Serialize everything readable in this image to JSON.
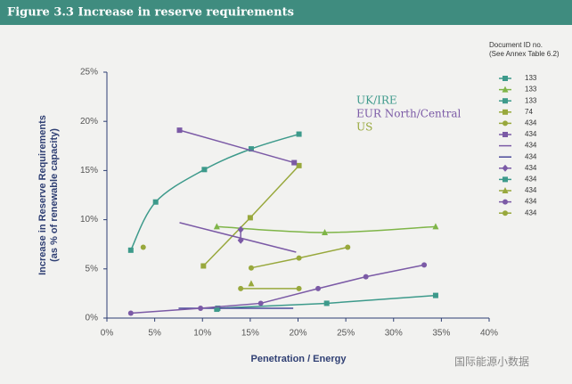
{
  "chart_data": {
    "type": "line",
    "title": "Figure 3.3 Increase in reserve requirements",
    "x_label": "Penetration / Energy",
    "y_label": [
      "Increase in Reserve Requirements",
      "(as % of renewable capacity)"
    ],
    "legend_title": [
      "Document ID no.",
      "(See Annex Table 6.2)"
    ],
    "annotations": [
      {
        "text": "UK/IRE",
        "color": "#3d9a8b"
      },
      {
        "text": "EUR North/Central",
        "color": "#7b5aa6"
      },
      {
        "text": "US",
        "color": "#98a83c"
      }
    ],
    "watermark": "国际能源小数据",
    "xlim": [
      0,
      40
    ],
    "ylim": [
      0,
      25
    ],
    "xticks": [
      {
        "value": 0,
        "label": "0%"
      },
      {
        "value": 5,
        "label": "5%"
      },
      {
        "value": 10,
        "label": "10%"
      },
      {
        "value": 15,
        "label": "15%"
      },
      {
        "value": 20,
        "label": "20%"
      },
      {
        "value": 25,
        "label": "25%"
      },
      {
        "value": 30,
        "label": "30%"
      },
      {
        "value": 35,
        "label": "35%"
      },
      {
        "value": 40,
        "label": "40%"
      }
    ],
    "yticks": [
      {
        "value": 0,
        "label": "0%"
      },
      {
        "value": 5,
        "label": "5%"
      },
      {
        "value": 10,
        "label": "10%"
      },
      {
        "value": 15,
        "label": "15%"
      },
      {
        "value": 20,
        "label": "20%"
      },
      {
        "value": 25,
        "label": "25%"
      }
    ],
    "series": [
      {
        "name": "133",
        "color": "#3d9a8b",
        "marker": "square",
        "smooth": true,
        "x": [
          2.5,
          5.1,
          10.2,
          15.1,
          20.1
        ],
        "values": [
          6.9,
          11.8,
          15.1,
          17.2,
          18.7
        ]
      },
      {
        "name": "133",
        "color": "#7fb548",
        "marker": "triangle",
        "smooth": true,
        "x": [
          11.5,
          22.8,
          34.4
        ],
        "values": [
          9.3,
          8.7,
          9.3
        ]
      },
      {
        "name": "133",
        "color": "#3d9a8b",
        "marker": "square",
        "x": [
          11.6,
          23.0,
          34.4
        ],
        "values": [
          1.0,
          1.5,
          2.3
        ]
      },
      {
        "name": "74",
        "color": "#98a83c",
        "marker": "square",
        "x": [
          10.1,
          15.0,
          20.1
        ],
        "values": [
          5.3,
          10.2,
          15.5
        ]
      },
      {
        "name": "434",
        "color": "#98a83c",
        "marker": "circle",
        "x": [
          3.8,
          null,
          14.0,
          20.1
        ],
        "values": [
          7.2,
          null,
          3.0,
          3.0
        ]
      },
      {
        "name": "434",
        "color": "#7b5aa6",
        "marker": "square",
        "x": [
          7.6,
          19.6
        ],
        "values": [
          19.1,
          15.8
        ]
      },
      {
        "name": "434",
        "color": "#7b5aa6",
        "marker": "none",
        "x": [
          7.6,
          19.8
        ],
        "values": [
          9.7,
          6.7
        ]
      },
      {
        "name": "434",
        "color": "#4b4a9a",
        "marker": "none",
        "x": [
          7.5,
          19.5
        ],
        "values": [
          1.0,
          1.0
        ]
      },
      {
        "name": "434",
        "color": "#7b5aa6",
        "marker": "diamond",
        "x": [
          14.0,
          14.0
        ],
        "values": [
          9.0,
          7.9
        ]
      },
      {
        "name": "434",
        "color": "#3d9a8b",
        "marker": "square",
        "x": [
          11.5
        ],
        "values": [
          0.9
        ]
      },
      {
        "name": "434",
        "color": "#98a83c",
        "marker": "triangle",
        "x": [
          15.1
        ],
        "values": [
          3.5
        ]
      },
      {
        "name": "434",
        "color": "#7b5aa6",
        "marker": "circle",
        "x": [
          2.5,
          9.8,
          16.1,
          22.1,
          27.1,
          33.2
        ],
        "values": [
          0.5,
          1.0,
          1.5,
          3.0,
          4.2,
          5.4
        ]
      },
      {
        "name": "434",
        "color": "#98a83c",
        "marker": "circle",
        "x": [
          15.1,
          20.1,
          25.2
        ],
        "values": [
          5.1,
          6.1,
          7.2
        ]
      }
    ]
  }
}
